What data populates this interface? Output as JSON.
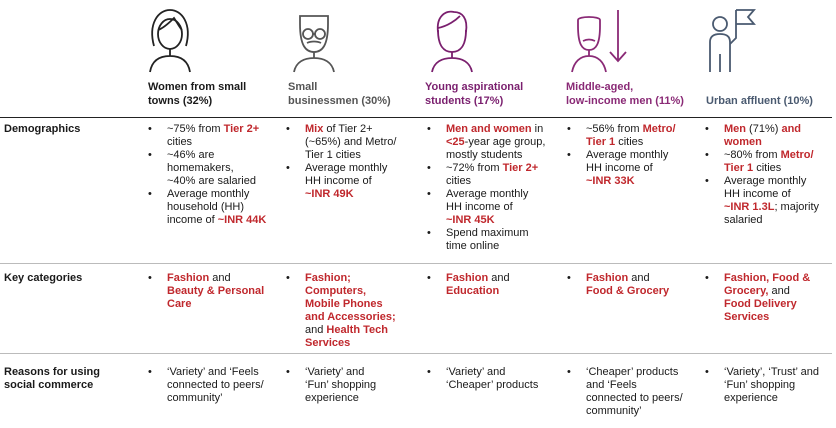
{
  "segments": [
    {
      "name": "Women from small towns (32%)",
      "icon": "woman-icon"
    },
    {
      "name": "Small businessmen (30%)",
      "icon": "man-glasses-moustache-icon"
    },
    {
      "name": "Young aspirational students (17%)",
      "icon": "young-person-icon"
    },
    {
      "name": "Middle-aged, low-income men (11%)",
      "icon": "man-down-arrow-icon"
    },
    {
      "name": "Urban affluent (10%)",
      "icon": "person-flag-icon"
    }
  ],
  "header_lines": {
    "c1": [
      "Women from small",
      "towns (32%)"
    ],
    "c2": [
      "Small",
      "businessmen (30%)"
    ],
    "c3": [
      "Young aspirational",
      "students (17%)"
    ],
    "c4": [
      "Middle-aged,",
      "low-income men (11%)"
    ],
    "c5": [
      "Urban affluent (10%)"
    ]
  },
  "rows": {
    "demographics": "Demographics",
    "key_categories": "Key categories",
    "reasons": [
      "Reasons for using",
      "social commerce"
    ]
  },
  "colors": {
    "highlight": "#c0282d",
    "students": "#7a1f6e",
    "urban": "#4a5a70"
  },
  "demo": {
    "c1": {
      "b1": [
        "~75% from ",
        "Tier 2+",
        "cities"
      ],
      "b2": [
        "~46% are",
        "homemakers,",
        "~40% are salaried"
      ],
      "b3": [
        "Average monthly",
        "household (HH)",
        "income of ",
        "~INR 44K"
      ]
    },
    "c2": {
      "b1": [
        "Mix",
        " of Tier 2+",
        "(~65%) and Metro/",
        "Tier 1 cities"
      ],
      "b2": [
        "Average monthly",
        "HH income of",
        "~INR 49K"
      ]
    },
    "c3": {
      "b1": [
        "Men and women",
        " in",
        "<25",
        "-year age group,",
        "mostly students"
      ],
      "b2": [
        "~72% from ",
        "Tier 2+",
        "cities"
      ],
      "b3": [
        "Average monthly",
        "HH income of",
        "~INR 45K"
      ],
      "b4": [
        "Spend maximum",
        "time online"
      ]
    },
    "c4": {
      "b1": [
        "~56% from ",
        "Metro/",
        "Tier 1",
        " cities"
      ],
      "b2": [
        "Average monthly",
        "HH income of",
        "~INR 33K"
      ]
    },
    "c5": {
      "b1": [
        "Men",
        " (71%) ",
        "and",
        "women"
      ],
      "b2": [
        "~80% from ",
        "Metro/",
        "Tier 1",
        " cities"
      ],
      "b3": [
        "Average monthly",
        "HH income of",
        "~INR 1.3L",
        "; majority",
        "salaried"
      ]
    }
  },
  "cats": {
    "c1": [
      "Fashion",
      " and",
      "Beauty & Personal",
      "Care"
    ],
    "c2": [
      "Fashion;",
      "Computers,",
      "Mobile Phones",
      "and Accessories;",
      "and ",
      "Health Tech",
      "Services"
    ],
    "c3": [
      "Fashion",
      " and",
      "Education"
    ],
    "c4": [
      "Fashion",
      " and",
      "Food & Grocery"
    ],
    "c5": [
      "Fashion, Food &",
      "Grocery,",
      " and",
      "Food Delivery",
      "Services"
    ]
  },
  "reasons": {
    "c1": [
      "‘Variety’ and ‘Feels",
      "connected to peers/",
      "community’"
    ],
    "c2": [
      "‘Variety’ and",
      "‘Fun’ shopping",
      "experience"
    ],
    "c3": [
      "‘Variety’ and",
      "‘Cheaper’ products"
    ],
    "c4": [
      "‘Cheaper’ products",
      "and ‘Feels",
      "connected to peers/",
      "community’"
    ],
    "c5": [
      "‘Variety’, ‘Trust’ and",
      "‘Fun’ shopping",
      "experience"
    ]
  }
}
